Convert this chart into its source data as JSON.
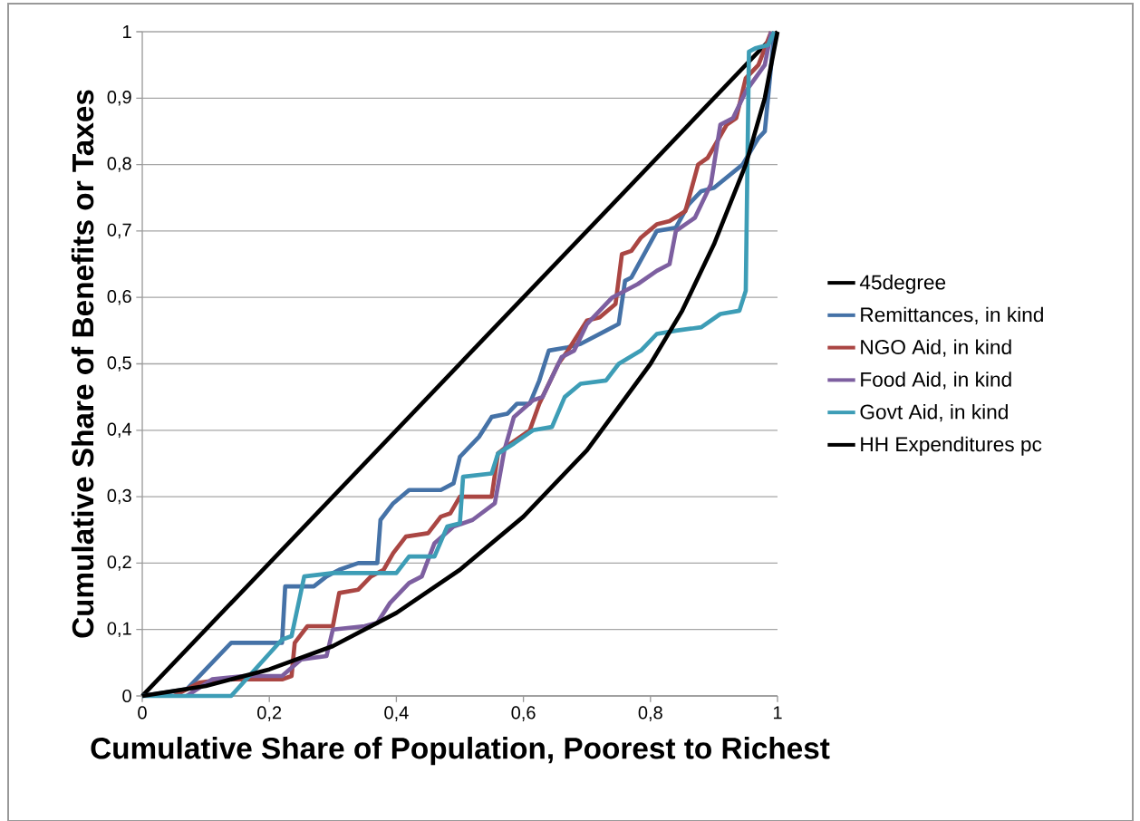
{
  "chart_data": {
    "type": "line",
    "xlabel": "Cumulative Share of Population, Poorest to Richest",
    "ylabel": "Cumulative Share of Benefits or Taxes",
    "xlim": [
      0,
      1
    ],
    "ylim": [
      0,
      1
    ],
    "xticks": [
      0,
      {
        "value": 0.2,
        "label": "0,2"
      },
      {
        "value": 0.4,
        "label": "0,4"
      },
      {
        "value": 0.6,
        "label": "0,6"
      },
      {
        "value": 0.8,
        "label": "0,8"
      },
      1
    ],
    "yticks": [
      0,
      {
        "value": 0.1,
        "label": "0,1"
      },
      {
        "value": 0.2,
        "label": "0,2"
      },
      {
        "value": 0.3,
        "label": "0,3"
      },
      {
        "value": 0.4,
        "label": "0,4"
      },
      {
        "value": 0.5,
        "label": "0,5"
      },
      {
        "value": 0.6,
        "label": "0,6"
      },
      {
        "value": 0.7,
        "label": "0,7"
      },
      {
        "value": 0.8,
        "label": "0,8"
      },
      {
        "value": 0.9,
        "label": "0,9"
      },
      1
    ],
    "grid": "y",
    "legend": "right",
    "marker": "none",
    "line_style": "solid",
    "series": [
      {
        "name": "45degree",
        "color": "#000000",
        "x": [
          0,
          1
        ],
        "values": [
          0,
          1
        ]
      },
      {
        "name": "Remittances, in kind",
        "color": "#4572a7",
        "x": [
          0,
          0.07,
          0.1,
          0.14,
          0.22,
          0.225,
          0.27,
          0.29,
          0.31,
          0.34,
          0.37,
          0.375,
          0.395,
          0.42,
          0.47,
          0.49,
          0.5,
          0.53,
          0.55,
          0.575,
          0.59,
          0.61,
          0.625,
          0.64,
          0.67,
          0.69,
          0.73,
          0.75,
          0.76,
          0.77,
          0.79,
          0.81,
          0.84,
          0.86,
          0.88,
          0.9,
          0.945,
          0.97,
          0.98,
          0.995
        ],
        "values": [
          0,
          0.01,
          0.04,
          0.08,
          0.08,
          0.165,
          0.165,
          0.18,
          0.19,
          0.2,
          0.2,
          0.265,
          0.29,
          0.31,
          0.31,
          0.32,
          0.36,
          0.39,
          0.42,
          0.425,
          0.44,
          0.44,
          0.475,
          0.52,
          0.525,
          0.53,
          0.55,
          0.56,
          0.625,
          0.63,
          0.665,
          0.7,
          0.705,
          0.74,
          0.76,
          0.765,
          0.8,
          0.84,
          0.85,
          1.0
        ]
      },
      {
        "name": "NGO Aid, in kind",
        "color": "#aa4643",
        "x": [
          0.05,
          0.09,
          0.13,
          0.22,
          0.235,
          0.24,
          0.26,
          0.3,
          0.31,
          0.34,
          0.36,
          0.38,
          0.395,
          0.415,
          0.45,
          0.47,
          0.485,
          0.5,
          0.55,
          0.56,
          0.58,
          0.61,
          0.625,
          0.655,
          0.67,
          0.7,
          0.72,
          0.745,
          0.755,
          0.77,
          0.785,
          0.81,
          0.83,
          0.855,
          0.875,
          0.89,
          0.92,
          0.935,
          0.95,
          0.97,
          0.99
        ],
        "values": [
          0,
          0.02,
          0.025,
          0.025,
          0.03,
          0.08,
          0.105,
          0.105,
          0.155,
          0.16,
          0.18,
          0.19,
          0.215,
          0.24,
          0.245,
          0.27,
          0.275,
          0.3,
          0.3,
          0.365,
          0.38,
          0.4,
          0.44,
          0.5,
          0.52,
          0.565,
          0.57,
          0.59,
          0.665,
          0.67,
          0.69,
          0.71,
          0.715,
          0.73,
          0.8,
          0.81,
          0.86,
          0.87,
          0.93,
          0.95,
          1.0
        ]
      },
      {
        "name": "Food Aid, in kind",
        "color": "#7d5fa0",
        "x": [
          0.07,
          0.11,
          0.16,
          0.22,
          0.25,
          0.29,
          0.3,
          0.35,
          0.37,
          0.39,
          0.42,
          0.44,
          0.46,
          0.49,
          0.52,
          0.555,
          0.57,
          0.585,
          0.615,
          0.63,
          0.66,
          0.68,
          0.7,
          0.74,
          0.78,
          0.81,
          0.83,
          0.84,
          0.87,
          0.895,
          0.91,
          0.93,
          0.95,
          0.98,
          0.99
        ],
        "values": [
          0,
          0.025,
          0.03,
          0.03,
          0.055,
          0.06,
          0.1,
          0.105,
          0.11,
          0.14,
          0.17,
          0.18,
          0.23,
          0.255,
          0.265,
          0.29,
          0.37,
          0.42,
          0.445,
          0.45,
          0.51,
          0.52,
          0.56,
          0.6,
          0.62,
          0.64,
          0.65,
          0.7,
          0.72,
          0.77,
          0.86,
          0.87,
          0.91,
          0.95,
          1.0
        ]
      },
      {
        "name": "Govt Aid, in kind",
        "color": "#3d9db6",
        "x": [
          0,
          0.14,
          0.22,
          0.235,
          0.255,
          0.3,
          0.4,
          0.42,
          0.46,
          0.48,
          0.5,
          0.505,
          0.55,
          0.56,
          0.585,
          0.615,
          0.645,
          0.665,
          0.69,
          0.73,
          0.75,
          0.785,
          0.81,
          0.84,
          0.88,
          0.91,
          0.94,
          0.95,
          0.955,
          0.965,
          0.985,
          0.995
        ],
        "values": [
          0,
          0,
          0.085,
          0.09,
          0.18,
          0.185,
          0.185,
          0.21,
          0.21,
          0.255,
          0.26,
          0.33,
          0.335,
          0.365,
          0.38,
          0.4,
          0.405,
          0.45,
          0.47,
          0.475,
          0.5,
          0.52,
          0.545,
          0.55,
          0.555,
          0.575,
          0.58,
          0.61,
          0.97,
          0.975,
          0.98,
          1.0
        ]
      },
      {
        "name": "HH Expenditures pc",
        "color": "#000000",
        "x": [
          0,
          0.1,
          0.2,
          0.3,
          0.4,
          0.5,
          0.6,
          0.7,
          0.8,
          0.85,
          0.9,
          0.95,
          0.98,
          1
        ],
        "values": [
          0,
          0.015,
          0.04,
          0.075,
          0.125,
          0.19,
          0.27,
          0.37,
          0.5,
          0.58,
          0.68,
          0.8,
          0.9,
          1
        ]
      }
    ]
  }
}
